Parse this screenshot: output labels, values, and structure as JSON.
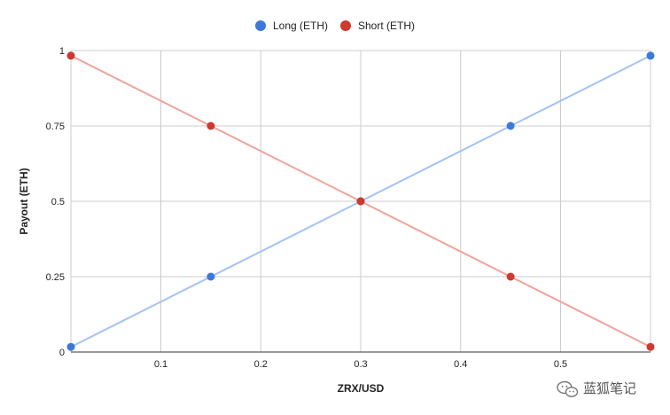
{
  "chart_data": {
    "type": "line",
    "title": "",
    "xlabel": "ZRX/USD",
    "ylabel": "Payout (ETH)",
    "xlim": [
      0.01,
      0.59
    ],
    "ylim": [
      0,
      1
    ],
    "x_ticks": [
      0.1,
      0.2,
      0.3,
      0.4,
      0.5
    ],
    "x_tick_labels": [
      "0.1",
      "0.2",
      "0.3",
      "0.4",
      "0.5"
    ],
    "y_ticks": [
      0,
      0.25,
      0.5,
      0.75,
      1
    ],
    "y_tick_labels": [
      "0",
      "0.25",
      "0.5",
      "0.75",
      "1"
    ],
    "grid": true,
    "legend_position": "top",
    "x": [
      0.01,
      0.15,
      0.3,
      0.45,
      0.59
    ],
    "series": [
      {
        "name": "Long (ETH)",
        "color": "#3c78d8",
        "line_color": "#a4c2f4",
        "values": [
          0.017,
          0.25,
          0.5,
          0.75,
          0.983
        ]
      },
      {
        "name": "Short (ETH)",
        "color": "#cc3a30",
        "line_color": "#f0a39b",
        "values": [
          0.983,
          0.75,
          0.5,
          0.25,
          0.017
        ]
      }
    ]
  },
  "watermark": {
    "text": "蓝狐笔记",
    "icon": "wechat-icon"
  }
}
